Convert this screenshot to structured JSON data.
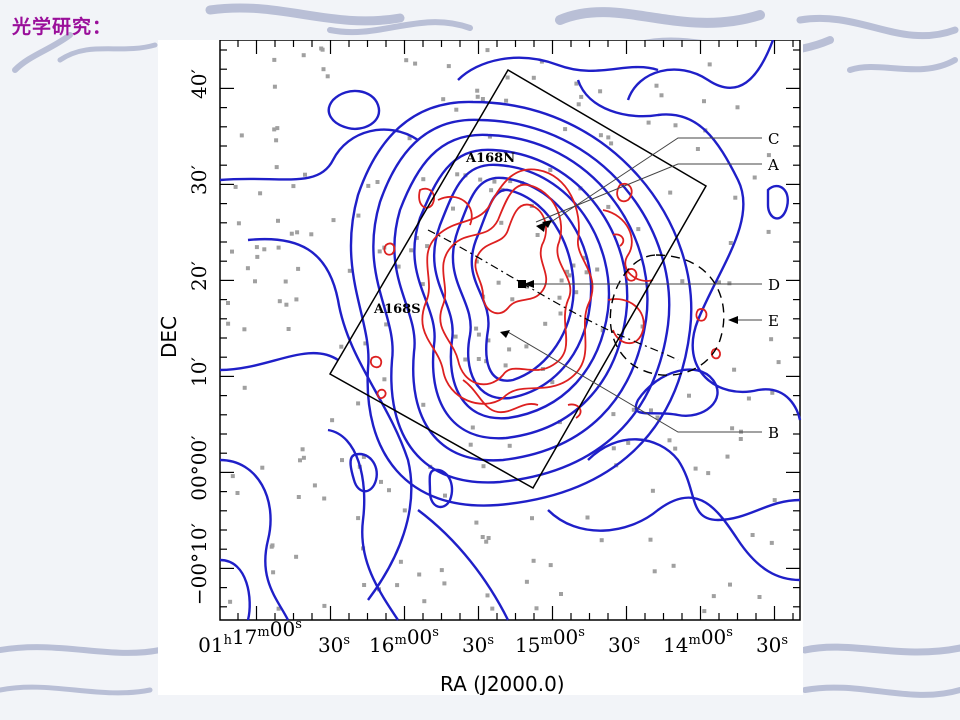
{
  "slide": {
    "title": "光学研究："
  },
  "figure": {
    "x_axis_title": "RA (J2000.0)",
    "y_axis_title": "DEC",
    "x_ticks": [
      {
        "h": "01",
        "u1": "h",
        "m": "17",
        "u2": "m",
        "s": "00",
        "u3": "s"
      },
      {
        "s": "30",
        "u3": "s"
      },
      {
        "m": "16",
        "u2": "m",
        "s": "00",
        "u3": "s"
      },
      {
        "s": "30",
        "u3": "s"
      },
      {
        "m": "15",
        "u2": "m",
        "s": "00",
        "u3": "s"
      },
      {
        "s": "30",
        "u3": "s"
      },
      {
        "m": "14",
        "u2": "m",
        "s": "00",
        "u3": "s"
      },
      {
        "s": "30",
        "u3": "s"
      }
    ],
    "y_ticks": [
      "40′",
      "30′",
      "20′",
      "10′",
      "00°00′",
      "−00°10′"
    ],
    "field_labels": {
      "north": "A168N",
      "south": "A168S"
    },
    "annotations": [
      "C",
      "A",
      "D",
      "E",
      "B"
    ],
    "colors": {
      "optical_contours": "#1f1fc8",
      "xray_contours": "#dd2020",
      "galaxies": "#a0a0a0",
      "frame": "#000000",
      "title": "#9a0f9a"
    }
  }
}
